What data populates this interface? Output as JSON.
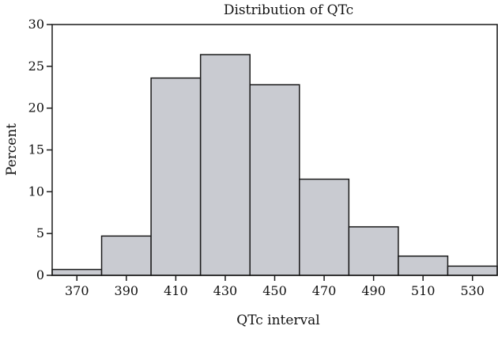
{
  "chart_data": {
    "type": "bar",
    "title": "Distribution of QTc",
    "xlabel": "QTc interval",
    "ylabel": "Percent",
    "bin_width": 20,
    "xlim": [
      360,
      540
    ],
    "ylim": [
      0,
      30
    ],
    "y_ticks": [
      0,
      5,
      10,
      15,
      20,
      25,
      30
    ],
    "categories": [
      "370",
      "390",
      "410",
      "430",
      "450",
      "470",
      "490",
      "510",
      "530"
    ],
    "x": [
      370,
      390,
      410,
      430,
      450,
      470,
      490,
      510,
      530
    ],
    "values": [
      0.7,
      4.7,
      23.6,
      26.4,
      22.8,
      11.5,
      5.8,
      2.3,
      1.1
    ],
    "grid": false,
    "colors": {
      "bar_fill": "#c9cbd1",
      "bar_stroke": "#1a1a1a"
    }
  }
}
